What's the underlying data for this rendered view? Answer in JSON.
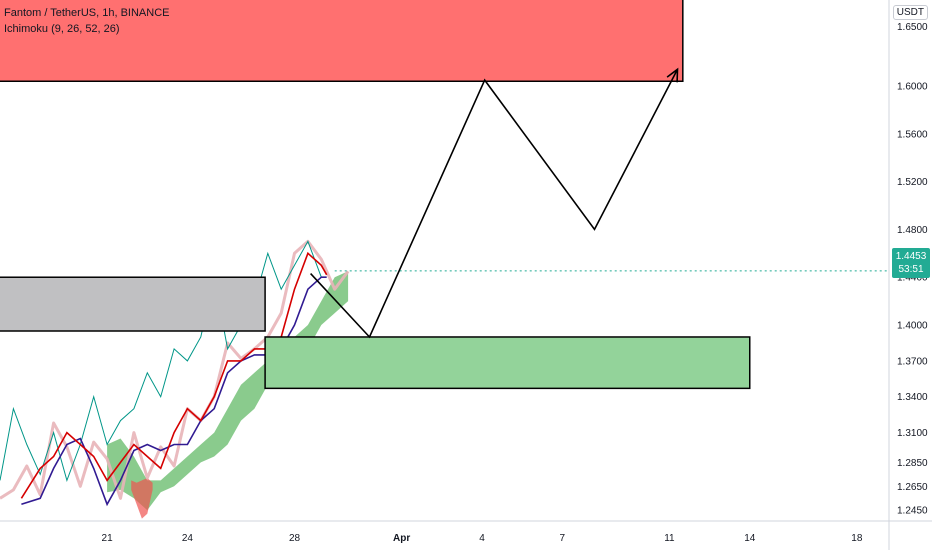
{
  "legend": {
    "symbol": "Fantom / TetherUS, 1h, BINANCE",
    "indicator": "Ichimoku (9, 26, 52, 26)"
  },
  "currency": "USDT",
  "last_price": {
    "value": "1.4453",
    "countdown": "53:51",
    "color": "#22ab94"
  },
  "colors": {
    "resistance_zone": "#ff7070",
    "range_zone": "#c0c0c2",
    "support_zone": "#93d39a",
    "cloud_bull": "#4caf50",
    "cloud_bear": "#ef5350",
    "tenkan": "#d50000",
    "kijun": "#311b92",
    "lagging": "#009688",
    "candles": "#e8b4b8"
  },
  "chart_data": {
    "type": "line",
    "title": "",
    "xlabel": "",
    "ylabel": "",
    "x_tick_labels": [
      "21",
      "24",
      "28",
      "Apr",
      "4",
      "7",
      "11",
      "14",
      "18"
    ],
    "y_tick_labels": [
      "1.2450",
      "1.2650",
      "1.2850",
      "1.3100",
      "1.3400",
      "1.3700",
      "1.4000",
      "1.4400",
      "1.4800",
      "1.5200",
      "1.5600",
      "1.6000",
      "1.6500"
    ],
    "ylim": [
      1.236,
      1.672
    ],
    "price_series": {
      "name": "",
      "x": [
        17.0,
        17.5,
        18.0,
        18.5,
        19.0,
        19.5,
        20.0,
        20.5,
        21.0,
        21.5,
        22.0,
        22.5,
        23.0,
        23.5,
        24.0,
        24.5,
        25.0,
        25.5,
        26.0,
        26.5,
        27.0,
        27.5,
        28.0,
        28.5,
        29.0,
        29.5,
        30.0
      ],
      "y": [
        1.255,
        1.262,
        1.282,
        1.258,
        1.318,
        1.298,
        1.265,
        1.302,
        1.288,
        1.255,
        1.31,
        1.272,
        1.298,
        1.282,
        1.33,
        1.32,
        1.34,
        1.385,
        1.372,
        1.38,
        1.39,
        1.41,
        1.46,
        1.47,
        1.455,
        1.43,
        1.445
      ]
    },
    "lagging_span": {
      "name": "",
      "x": [
        17.0,
        17.5,
        18.0,
        18.5,
        19.0,
        19.5,
        20.0,
        20.5,
        21.0,
        21.5,
        22.0,
        22.5,
        23.0,
        23.5,
        24.0,
        24.5,
        25.0,
        25.5,
        26.0,
        26.5,
        27.0,
        27.5,
        28.0,
        28.5,
        29.0
      ],
      "y": [
        1.27,
        1.33,
        1.3,
        1.275,
        1.31,
        1.27,
        1.3,
        1.34,
        1.3,
        1.32,
        1.33,
        1.36,
        1.34,
        1.38,
        1.37,
        1.39,
        1.44,
        1.38,
        1.4,
        1.42,
        1.46,
        1.43,
        1.45,
        1.47,
        1.44
      ]
    },
    "tenkan_sen": {
      "name": "",
      "x": [
        17.8,
        18.5,
        19.0,
        19.5,
        20.0,
        20.5,
        21.0,
        21.5,
        22.0,
        22.5,
        23.0,
        23.5,
        24.0,
        24.5,
        25.0,
        25.5,
        26.0,
        26.5,
        27.0,
        27.5,
        28.0,
        28.5,
        29.0,
        29.2
      ],
      "y": [
        1.255,
        1.28,
        1.29,
        1.31,
        1.3,
        1.29,
        1.27,
        1.285,
        1.3,
        1.29,
        1.28,
        1.31,
        1.33,
        1.32,
        1.34,
        1.37,
        1.37,
        1.38,
        1.38,
        1.39,
        1.43,
        1.46,
        1.45,
        1.442
      ]
    },
    "kijun_sen": {
      "name": "",
      "x": [
        17.8,
        18.5,
        19.0,
        19.5,
        20.0,
        20.5,
        21.0,
        21.5,
        22.0,
        22.5,
        23.0,
        23.5,
        24.0,
        24.5,
        25.0,
        25.5,
        26.0,
        26.5,
        27.0,
        27.5,
        28.0,
        28.5,
        29.0,
        29.2
      ],
      "y": [
        1.25,
        1.255,
        1.28,
        1.3,
        1.305,
        1.28,
        1.25,
        1.27,
        1.295,
        1.3,
        1.295,
        1.3,
        1.3,
        1.32,
        1.33,
        1.36,
        1.37,
        1.375,
        1.375,
        1.38,
        1.4,
        1.43,
        1.44,
        1.44
      ]
    },
    "cloud": {
      "x": [
        21.0,
        21.5,
        22.0,
        22.5,
        23.0,
        23.5,
        24.0,
        24.5,
        25.0,
        25.5,
        26.0,
        26.5,
        27.0,
        27.5,
        28.0,
        28.5,
        29.0,
        29.5,
        30.0
      ],
      "upper": [
        1.3,
        1.305,
        1.29,
        1.27,
        1.27,
        1.28,
        1.29,
        1.3,
        1.31,
        1.33,
        1.35,
        1.36,
        1.37,
        1.38,
        1.39,
        1.4,
        1.42,
        1.44,
        1.445
      ],
      "lower": [
        1.26,
        1.262,
        1.255,
        1.245,
        1.26,
        1.265,
        1.275,
        1.285,
        1.29,
        1.3,
        1.32,
        1.33,
        1.35,
        1.36,
        1.37,
        1.38,
        1.4,
        1.41,
        1.42
      ],
      "bear_x": [
        21.9,
        22.1,
        22.3,
        22.5,
        22.7
      ],
      "bear_upper": [
        1.27,
        1.268,
        1.27,
        1.272,
        1.268
      ],
      "bear_lower": [
        1.262,
        1.25,
        1.238,
        1.242,
        1.262
      ]
    },
    "zones": [
      {
        "name": "resistance",
        "x_start": 16.8,
        "x_end": 42.5,
        "y_low": 1.604,
        "y_high": 1.675
      },
      {
        "name": "range",
        "x_start": 16.8,
        "x_end": 26.9,
        "y_low": 1.395,
        "y_high": 1.44
      },
      {
        "name": "support",
        "x_start": 26.9,
        "x_end": 45.0,
        "y_low": 1.347,
        "y_high": 1.39
      }
    ],
    "projection": {
      "x": [
        28.6,
        30.8,
        35.1,
        39.2,
        42.3
      ],
      "y": [
        1.443,
        1.39,
        1.605,
        1.48,
        1.614
      ]
    },
    "last_price_line": 1.4453
  }
}
